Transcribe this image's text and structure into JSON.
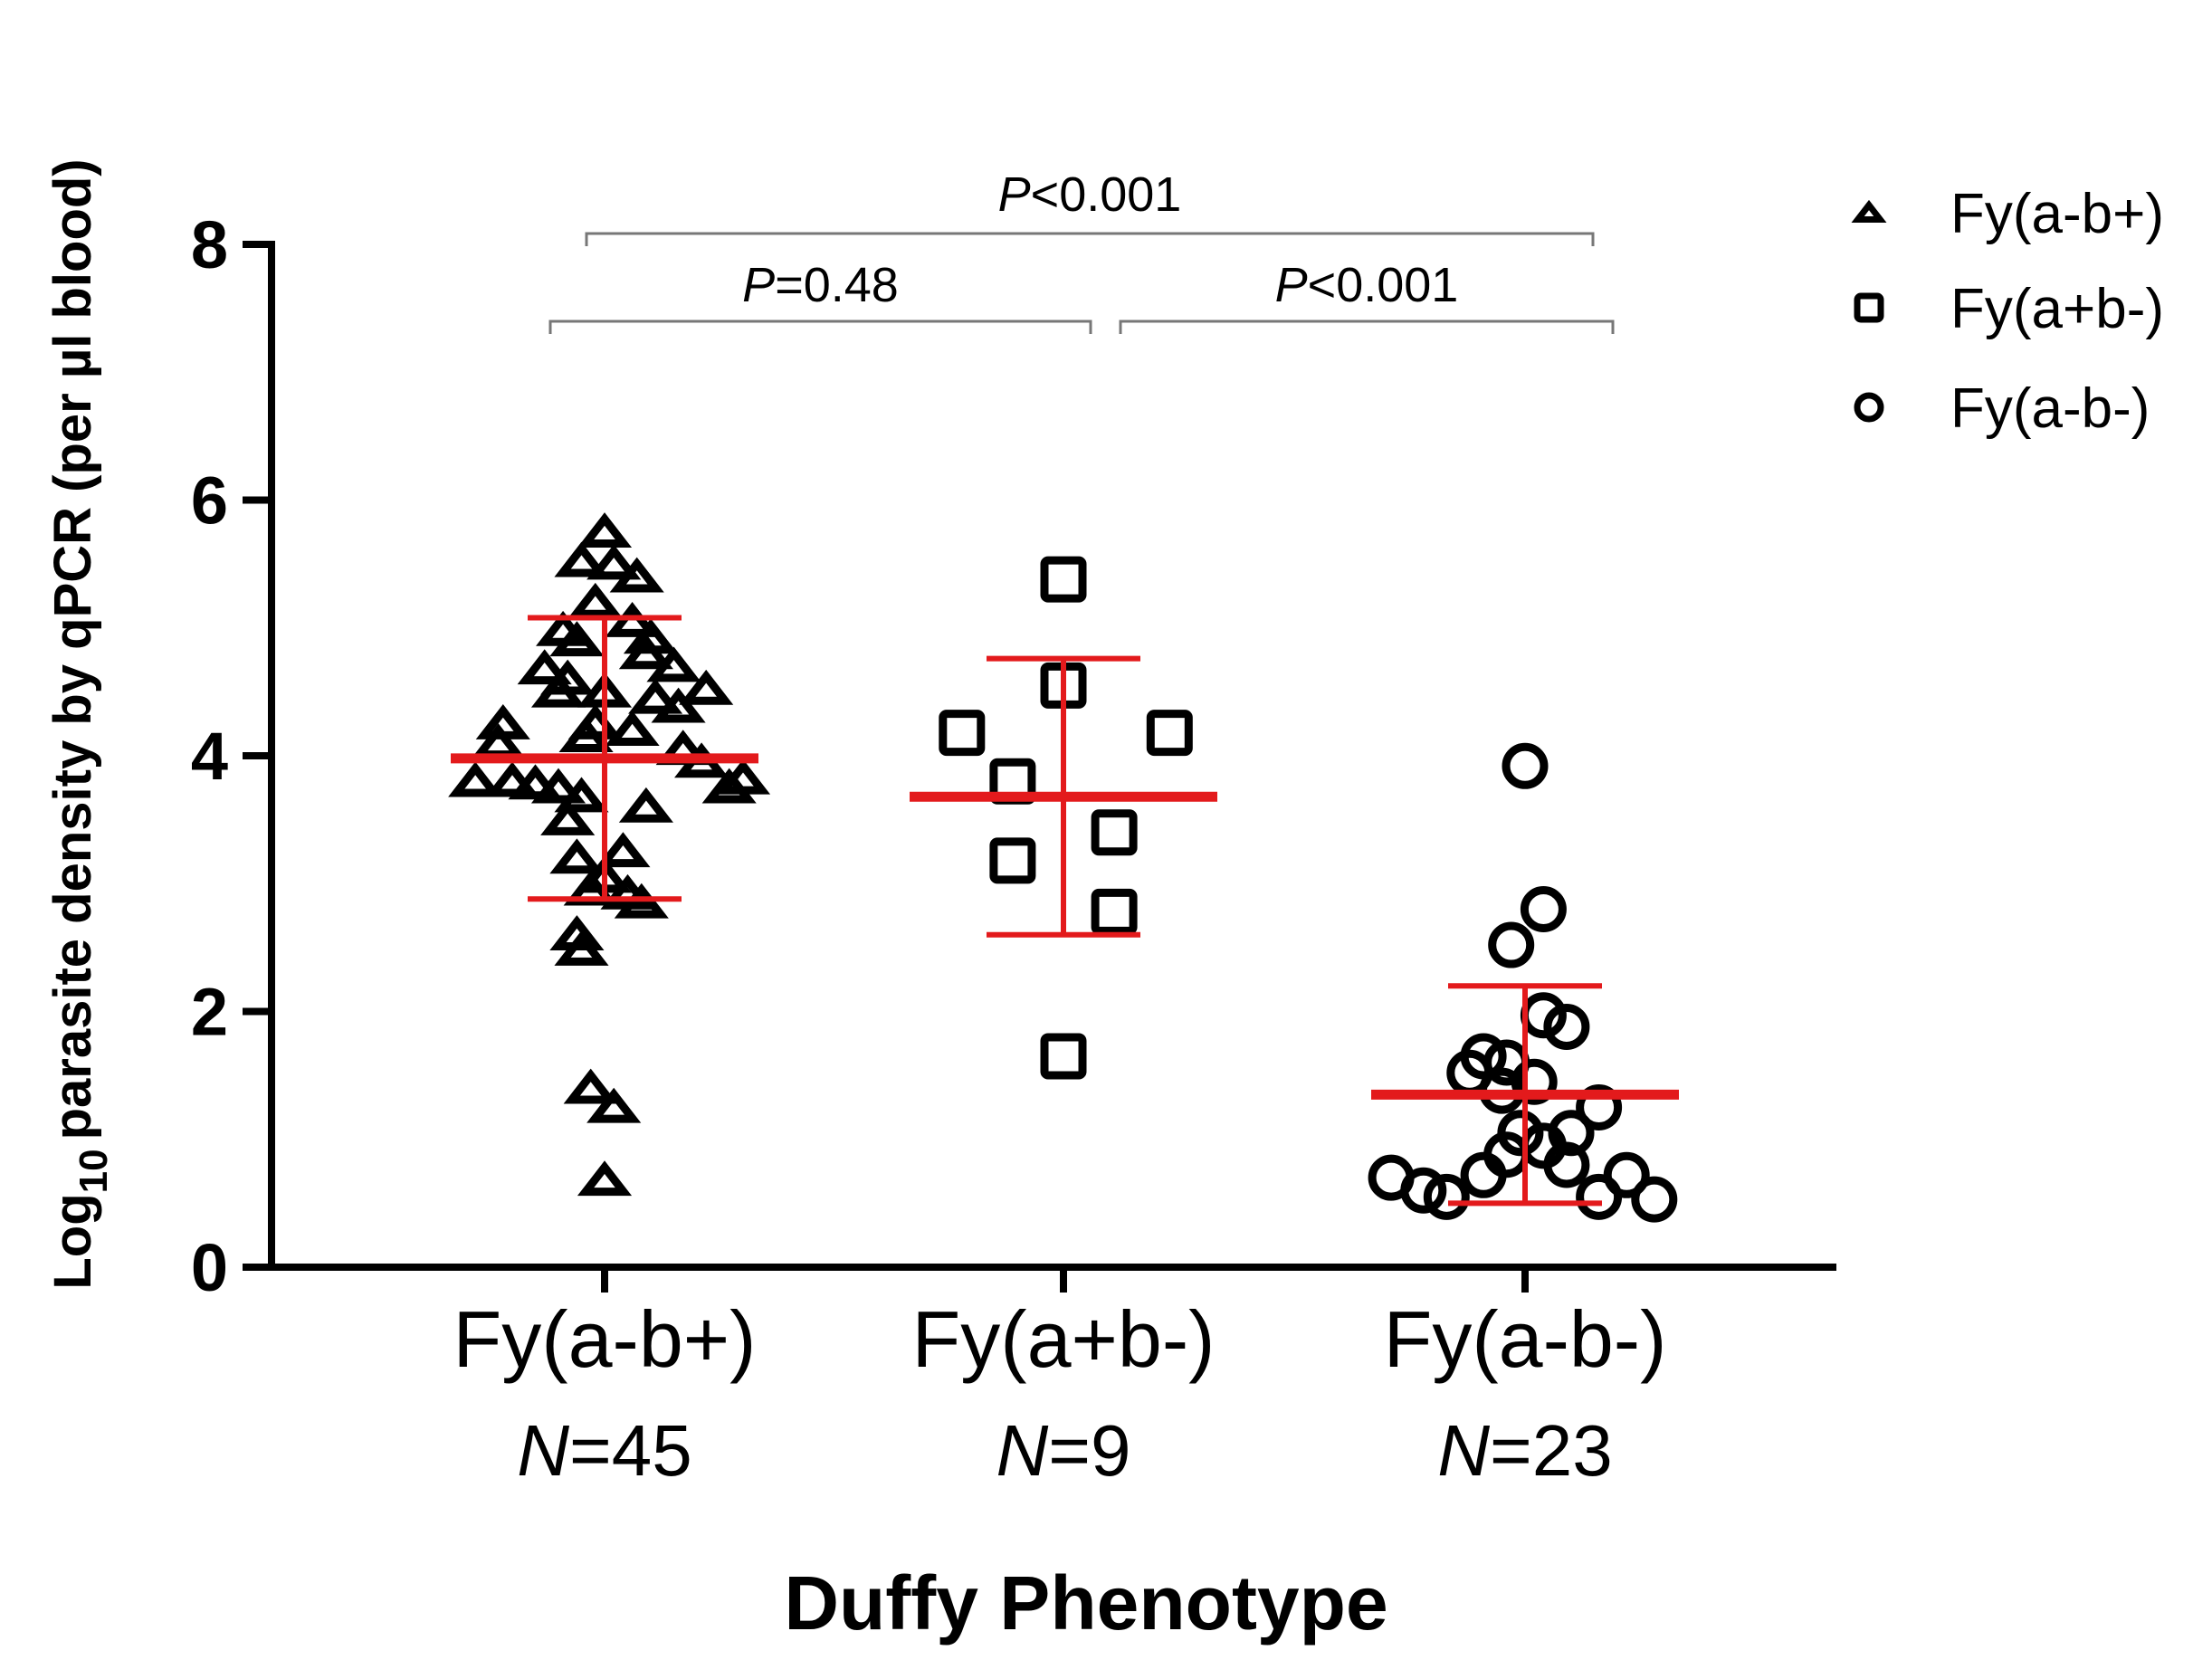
{
  "chart_data": {
    "type": "scatter",
    "xlabel": "Duffy  Phenotype",
    "ylabel": {
      "prefix": "Log",
      "sub": "10",
      "text": "parasite density by qPCR (per µl blood)"
    },
    "ylim": [
      0,
      8
    ],
    "yticks": [
      0,
      2,
      4,
      6,
      8
    ],
    "grid": false,
    "legend_position": "top-right",
    "colors": {
      "points": "#000000",
      "summary": "#e31a1c",
      "axis": "#000000",
      "bracket": "#777777"
    },
    "categories": [
      {
        "label": "Fy(a-b+)",
        "n_prefix": "N",
        "n_value": "=45"
      },
      {
        "label": "Fy(a+b-)",
        "n_prefix": "N",
        "n_value": "=9"
      },
      {
        "label": "Fy(a-b-)",
        "n_prefix": "N",
        "n_value": "=23"
      }
    ],
    "series": [
      {
        "name": "Fy(a-b+)",
        "marker": "triangle",
        "category_index": 0,
        "mean": 3.98,
        "sd_low": 2.88,
        "sd_high": 5.08,
        "points": [
          {
            "x": 0.0,
            "y": 5.75
          },
          {
            "x": -0.05,
            "y": 5.52
          },
          {
            "x": 0.02,
            "y": 5.5
          },
          {
            "x": 0.07,
            "y": 5.4
          },
          {
            "x": -0.02,
            "y": 5.2
          },
          {
            "x": 0.06,
            "y": 5.05
          },
          {
            "x": -0.09,
            "y": 4.98
          },
          {
            "x": -0.06,
            "y": 4.9
          },
          {
            "x": 0.1,
            "y": 4.92
          },
          {
            "x": 0.09,
            "y": 4.8
          },
          {
            "x": 0.15,
            "y": 4.7
          },
          {
            "x": -0.13,
            "y": 4.68
          },
          {
            "x": -0.08,
            "y": 4.6
          },
          {
            "x": -0.1,
            "y": 4.5
          },
          {
            "x": 0.22,
            "y": 4.52
          },
          {
            "x": 0.0,
            "y": 4.5
          },
          {
            "x": 0.11,
            "y": 4.45
          },
          {
            "x": 0.16,
            "y": 4.38
          },
          {
            "x": -0.22,
            "y": 4.25
          },
          {
            "x": -0.02,
            "y": 4.25
          },
          {
            "x": 0.06,
            "y": 4.2
          },
          {
            "x": -0.04,
            "y": 4.15
          },
          {
            "x": -0.23,
            "y": 4.1
          },
          {
            "x": 0.17,
            "y": 4.05
          },
          {
            "x": 0.21,
            "y": 3.95
          },
          {
            "x": -0.28,
            "y": 3.8
          },
          {
            "x": -0.2,
            "y": 3.8
          },
          {
            "x": -0.15,
            "y": 3.78
          },
          {
            "x": -0.1,
            "y": 3.75
          },
          {
            "x": -0.05,
            "y": 3.68
          },
          {
            "x": 0.27,
            "y": 3.75
          },
          {
            "x": 0.3,
            "y": 3.82
          },
          {
            "x": 0.09,
            "y": 3.6
          },
          {
            "x": -0.08,
            "y": 3.5
          },
          {
            "x": -0.06,
            "y": 3.2
          },
          {
            "x": 0.04,
            "y": 3.25
          },
          {
            "x": 0.0,
            "y": 3.05
          },
          {
            "x": -0.03,
            "y": 2.95
          },
          {
            "x": 0.05,
            "y": 2.92
          },
          {
            "x": 0.08,
            "y": 2.85
          },
          {
            "x": -0.06,
            "y": 2.6
          },
          {
            "x": -0.05,
            "y": 2.48
          },
          {
            "x": -0.03,
            "y": 1.4
          },
          {
            "x": 0.02,
            "y": 1.25
          },
          {
            "x": 0.0,
            "y": 0.68
          }
        ]
      },
      {
        "name": "Fy(a+b-)",
        "marker": "square",
        "category_index": 1,
        "mean": 3.68,
        "sd_low": 2.6,
        "sd_high": 4.76,
        "points": [
          {
            "x": 0.0,
            "y": 5.38
          },
          {
            "x": 0.0,
            "y": 4.55
          },
          {
            "x": -0.22,
            "y": 4.18
          },
          {
            "x": 0.23,
            "y": 4.18
          },
          {
            "x": -0.11,
            "y": 3.8
          },
          {
            "x": 0.11,
            "y": 3.4
          },
          {
            "x": -0.11,
            "y": 3.18
          },
          {
            "x": 0.11,
            "y": 2.78
          },
          {
            "x": 0.0,
            "y": 1.65
          }
        ]
      },
      {
        "name": "Fy(a-b-)",
        "marker": "circle",
        "category_index": 2,
        "mean": 1.35,
        "sd_low": 0.5,
        "sd_high": 2.2,
        "points": [
          {
            "x": 0.0,
            "y": 3.92
          },
          {
            "x": 0.04,
            "y": 2.8
          },
          {
            "x": -0.03,
            "y": 2.52
          },
          {
            "x": 0.04,
            "y": 1.97
          },
          {
            "x": 0.09,
            "y": 1.88
          },
          {
            "x": -0.09,
            "y": 1.65
          },
          {
            "x": -0.12,
            "y": 1.52
          },
          {
            "x": -0.04,
            "y": 1.6
          },
          {
            "x": 0.02,
            "y": 1.45
          },
          {
            "x": -0.05,
            "y": 1.38
          },
          {
            "x": 0.16,
            "y": 1.25
          },
          {
            "x": -0.01,
            "y": 1.05
          },
          {
            "x": 0.1,
            "y": 1.05
          },
          {
            "x": 0.04,
            "y": 0.95
          },
          {
            "x": -0.04,
            "y": 0.88
          },
          {
            "x": 0.09,
            "y": 0.8
          },
          {
            "x": -0.29,
            "y": 0.7
          },
          {
            "x": -0.09,
            "y": 0.72
          },
          {
            "x": 0.22,
            "y": 0.72
          },
          {
            "x": -0.22,
            "y": 0.6
          },
          {
            "x": -0.17,
            "y": 0.55
          },
          {
            "x": 0.16,
            "y": 0.55
          },
          {
            "x": 0.28,
            "y": 0.53
          }
        ]
      }
    ],
    "annotations": [
      {
        "from": 0,
        "to": 2,
        "italic": "P",
        "text": "<0.001",
        "level": 2
      },
      {
        "from": 0,
        "to": 1,
        "italic": "P",
        "text": "=0.48",
        "level": 1
      },
      {
        "from": 1,
        "to": 2,
        "italic": "P",
        "text": "<0.001",
        "level": 1
      }
    ]
  }
}
